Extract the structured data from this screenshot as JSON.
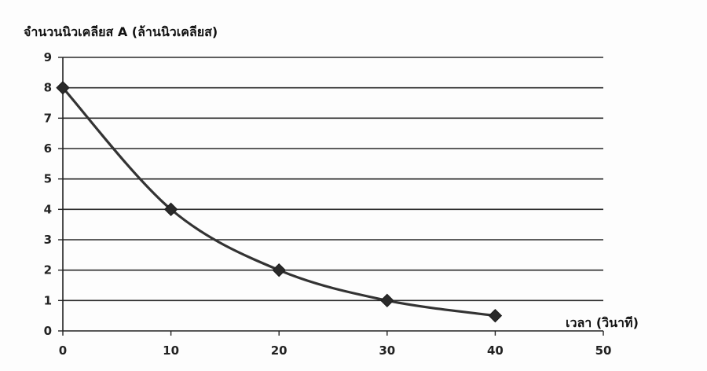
{
  "chart_data": {
    "type": "line",
    "title": "",
    "ylabel": "จำนวนนิวเคลียส A (ล้านนิวเคลียส)",
    "xlabel": "เวลา (วินาที)",
    "x": [
      0,
      10,
      20,
      30,
      40
    ],
    "series": [
      {
        "values": [
          8,
          4,
          2,
          1,
          0.5
        ]
      }
    ],
    "xlim": [
      0,
      50
    ],
    "ylim": [
      0,
      9
    ],
    "xticks": [
      "0",
      "10",
      "20",
      "30",
      "40",
      "50"
    ],
    "yticks": [
      "0",
      "1",
      "2",
      "3",
      "4",
      "5",
      "6",
      "7",
      "8",
      "9"
    ],
    "grid": "horizontal",
    "legend": "none",
    "smooth": true,
    "marker": "diamond",
    "colors": {
      "line": "#333333",
      "marker": "#2a2a2a",
      "grid": "#2a2a2a",
      "axis": "#222222",
      "background": "#fdfdfd"
    }
  }
}
